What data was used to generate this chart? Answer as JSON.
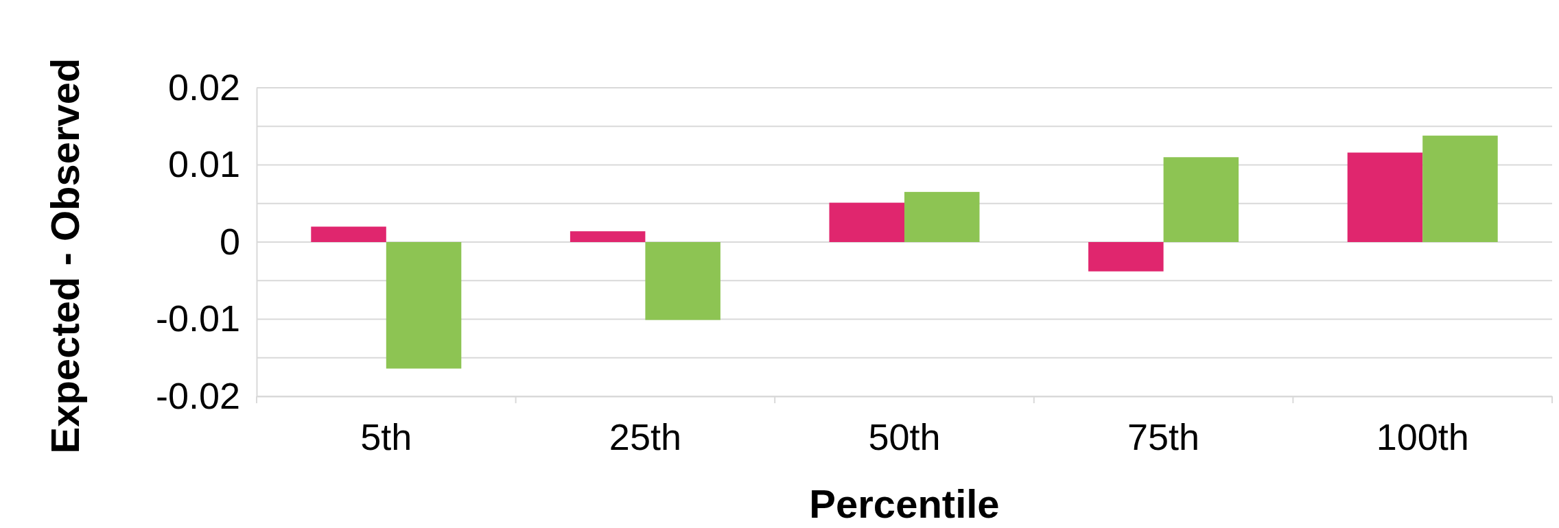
{
  "chart_data": {
    "type": "bar",
    "xlabel": "Percentile",
    "ylabel": "Expected - Observed",
    "categories": [
      "5th",
      "25th",
      "50th",
      "75th",
      "100th"
    ],
    "series": [
      {
        "color": "#e0266e",
        "values": [
          0.002,
          0.0014,
          0.0051,
          -0.0038,
          0.0116
        ]
      },
      {
        "color": "#8dc453",
        "values": [
          -0.0164,
          -0.0101,
          0.0065,
          0.011,
          0.0138
        ]
      }
    ],
    "ylim": [
      -0.02,
      0.02
    ],
    "yticks": [
      -0.02,
      {
        "value": -0.015,
        "label": null
      },
      -0.01,
      {
        "value": -0.005,
        "label": null
      },
      0,
      {
        "value": 0.005,
        "label": null
      },
      0.01,
      {
        "value": 0.015,
        "label": null
      },
      0.02
    ],
    "grid": "y"
  }
}
